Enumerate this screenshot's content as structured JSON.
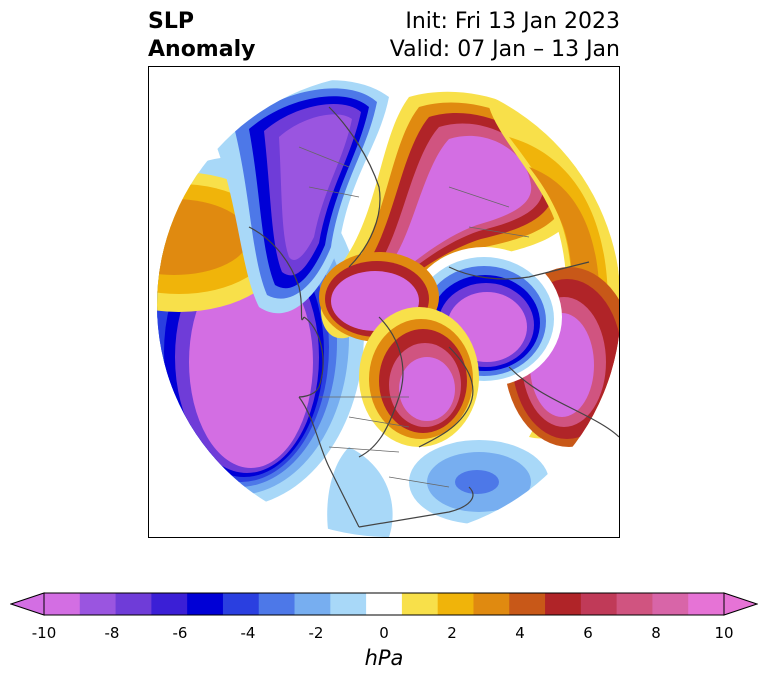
{
  "title": {
    "left_line1": "SLP",
    "left_line2": "Anomaly",
    "right_line1": "Init: Fri 13 Jan 2023",
    "right_line2": "Valid: 07 Jan – 13 Jan"
  },
  "colorbar": {
    "unit": "hPa",
    "ticks": [
      "-10",
      "-8",
      "-6",
      "-4",
      "-2",
      "0",
      "2",
      "4",
      "6",
      "8",
      "10"
    ],
    "levels": [
      -10,
      -9,
      -8,
      -7,
      -6,
      -5,
      -4,
      -3,
      -2,
      -1,
      1,
      2,
      3,
      4,
      5,
      6,
      7,
      8,
      9,
      10
    ],
    "colors": [
      "#d36ee3",
      "#9a55e0",
      "#6f3cd8",
      "#3b1fd6",
      "#0000d6",
      "#2a3fe0",
      "#4d78e8",
      "#77aef0",
      "#a8d8f8",
      "#ffffff",
      "#f8e04a",
      "#f0b40a",
      "#e08a10",
      "#c85818",
      "#b02428",
      "#c03a58",
      "#d05480",
      "#d865a8",
      "#e673d6"
    ],
    "extend": "both"
  },
  "map": {
    "projection": "north-polar-stereographic",
    "field": "sea-level-pressure-anomaly",
    "anomaly_centers": [
      {
        "name": "east-pacific-low",
        "min_hPa": -10
      },
      {
        "name": "western-north-america-low",
        "min_hPa": -10
      },
      {
        "name": "arctic-siberia-high",
        "max_hPa": 10
      },
      {
        "name": "bering-high",
        "max_hPa": 10
      },
      {
        "name": "north-atlantic-greenland-high",
        "max_hPa": 10
      },
      {
        "name": "europe-arctic-low",
        "min_hPa": -10
      },
      {
        "name": "western-asia-high",
        "max_hPa": 10
      },
      {
        "name": "north-atlantic-weak-low",
        "min_hPa": -6
      }
    ]
  }
}
